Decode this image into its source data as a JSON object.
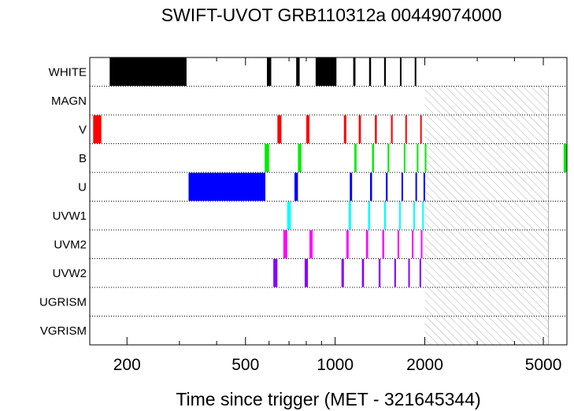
{
  "chart_data": {
    "type": "timeline",
    "title": "SWIFT-UVOT GRB110312a 00449074000",
    "xlabel": "Time since trigger (MET - 321645344)",
    "x_scale": "log",
    "xlim": [
      150,
      6000
    ],
    "x_ticks": [
      {
        "value": 200,
        "label": "200"
      },
      {
        "value": 500,
        "label": "500"
      },
      {
        "value": 1000,
        "label": "1000"
      },
      {
        "value": 2000,
        "label": "2000"
      },
      {
        "value": 5000,
        "label": "5000"
      }
    ],
    "hatched_interval": [
      2000,
      5200
    ],
    "rows": [
      {
        "label": "WHITE",
        "color": "#000000",
        "intervals": [
          [
            175,
            317
          ],
          [
            590,
            610
          ],
          [
            740,
            760
          ],
          [
            860,
            1010
          ],
          [
            1150,
            1170
          ],
          [
            1300,
            1320
          ],
          [
            1460,
            1480
          ],
          [
            1650,
            1670
          ],
          [
            1850,
            1870
          ]
        ]
      },
      {
        "label": "MAGN",
        "color": "#000000",
        "intervals": []
      },
      {
        "label": "V",
        "color": "#ff0000",
        "intervals": [
          [
            154,
            164
          ],
          [
            640,
            660
          ],
          [
            800,
            820
          ],
          [
            1070,
            1090
          ],
          [
            1200,
            1220
          ],
          [
            1360,
            1380
          ],
          [
            1540,
            1560
          ],
          [
            1720,
            1740
          ],
          [
            1930,
            1950
          ]
        ]
      },
      {
        "label": "B",
        "color": "#00ee00",
        "intervals": [
          [
            580,
            600
          ],
          [
            750,
            770
          ],
          [
            1160,
            1180
          ],
          [
            1330,
            1350
          ],
          [
            1500,
            1520
          ],
          [
            1700,
            1720
          ],
          [
            1880,
            1900
          ],
          [
            2000,
            2005
          ],
          [
            5850,
            6050
          ]
        ]
      },
      {
        "label": "U",
        "color": "#0000ff",
        "intervals": [
          [
            322,
            583
          ],
          [
            730,
            750
          ],
          [
            1120,
            1140
          ],
          [
            1310,
            1330
          ],
          [
            1480,
            1500
          ],
          [
            1670,
            1690
          ],
          [
            1860,
            1880
          ],
          [
            1980,
            2000
          ]
        ]
      },
      {
        "label": "UVW1",
        "color": "#00ffff",
        "intervals": [
          [
            690,
            710
          ],
          [
            1110,
            1130
          ],
          [
            1290,
            1310
          ],
          [
            1460,
            1480
          ],
          [
            1640,
            1660
          ],
          [
            1830,
            1850
          ],
          [
            1960,
            1980
          ]
        ]
      },
      {
        "label": "UVM2",
        "color": "#ff00ff",
        "intervals": [
          [
            670,
            690
          ],
          [
            820,
            840
          ],
          [
            1090,
            1110
          ],
          [
            1270,
            1290
          ],
          [
            1440,
            1460
          ],
          [
            1620,
            1640
          ],
          [
            1810,
            1830
          ],
          [
            1940,
            1960
          ]
        ]
      },
      {
        "label": "UVW2",
        "color": "#8800ff",
        "intervals": [
          [
            620,
            640
          ],
          [
            790,
            810
          ],
          [
            1050,
            1070
          ],
          [
            1230,
            1250
          ],
          [
            1400,
            1420
          ],
          [
            1580,
            1600
          ],
          [
            1760,
            1780
          ],
          [
            1920,
            1940
          ]
        ]
      },
      {
        "label": "UGRISM",
        "color": "#000000",
        "intervals": []
      },
      {
        "label": "VGRISM",
        "color": "#000000",
        "intervals": []
      }
    ]
  }
}
